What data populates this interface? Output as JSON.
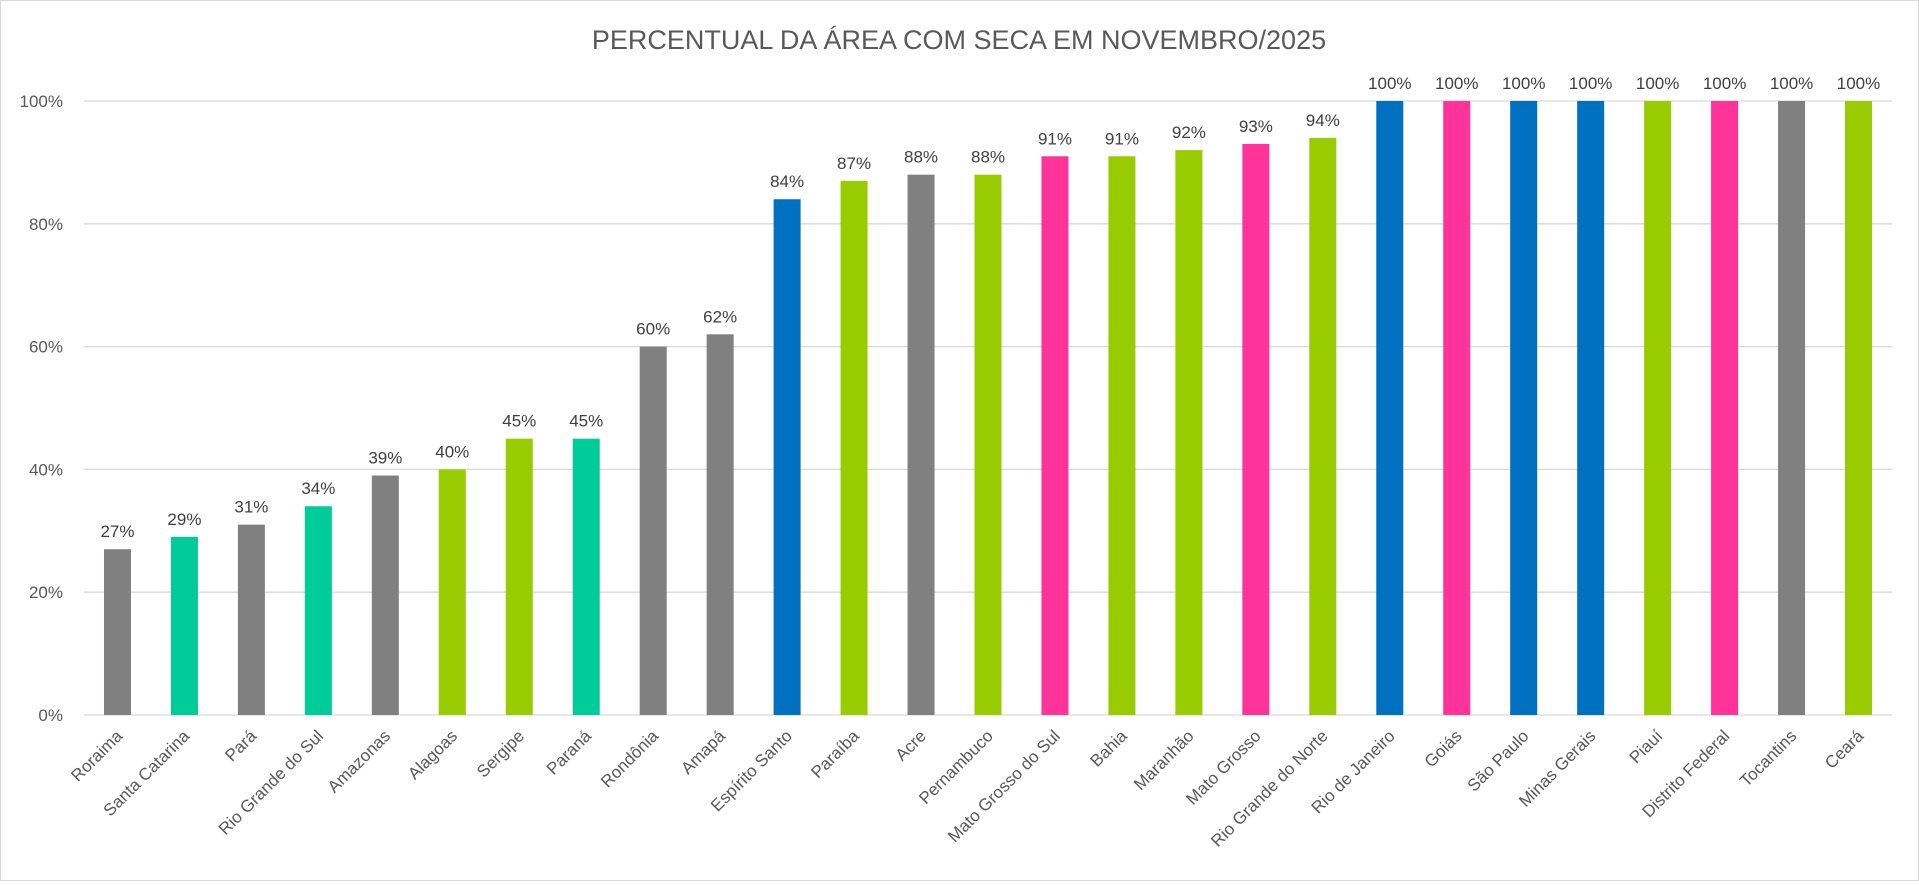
{
  "chart_data": {
    "type": "bar",
    "title": "PERCENTUAL DA ÁREA COM SECA EM NOVEMBRO/2025",
    "xlabel": "",
    "ylabel": "",
    "ylim": [
      0,
      100
    ],
    "yticks": [
      "0%",
      "20%",
      "40%",
      "60%",
      "80%",
      "100%"
    ],
    "grid": true,
    "categories": [
      "Roraima",
      "Santa Catarina",
      "Pará",
      "Rio Grande do Sul",
      "Amazonas",
      "Alagoas",
      "Sergipe",
      "Paraná",
      "Rondônia",
      "Amapá",
      "Espírito Santo",
      "Paraíba",
      "Acre",
      "Pernambuco",
      "Mato Grosso do Sul",
      "Bahia",
      "Maranhão",
      "Mato Grosso",
      "Rio Grande do Norte",
      "Rio de Janeiro",
      "Goiás",
      "São Paulo",
      "Minas Gerais",
      "Piauí",
      "Distrito Federal",
      "Tocantins",
      "Ceará"
    ],
    "values": [
      27,
      29,
      31,
      34,
      39,
      40,
      45,
      45,
      60,
      62,
      84,
      87,
      88,
      88,
      91,
      91,
      92,
      93,
      94,
      100,
      100,
      100,
      100,
      100,
      100,
      100,
      100
    ],
    "data_labels": [
      "27%",
      "29%",
      "31%",
      "34%",
      "39%",
      "40%",
      "45%",
      "45%",
      "60%",
      "62%",
      "84%",
      "87%",
      "88%",
      "88%",
      "91%",
      "91%",
      "92%",
      "93%",
      "94%",
      "100%",
      "100%",
      "100%",
      "100%",
      "100%",
      "100%",
      "100%",
      "100%"
    ],
    "colors": [
      "#808080",
      "#00CC99",
      "#808080",
      "#00CC99",
      "#808080",
      "#99CC00",
      "#99CC00",
      "#00CC99",
      "#808080",
      "#808080",
      "#0070C0",
      "#99CC00",
      "#808080",
      "#99CC00",
      "#FF3399",
      "#99CC00",
      "#99CC00",
      "#FF3399",
      "#99CC00",
      "#0070C0",
      "#FF3399",
      "#0070C0",
      "#0070C0",
      "#99CC00",
      "#FF3399",
      "#808080",
      "#99CC00"
    ]
  }
}
